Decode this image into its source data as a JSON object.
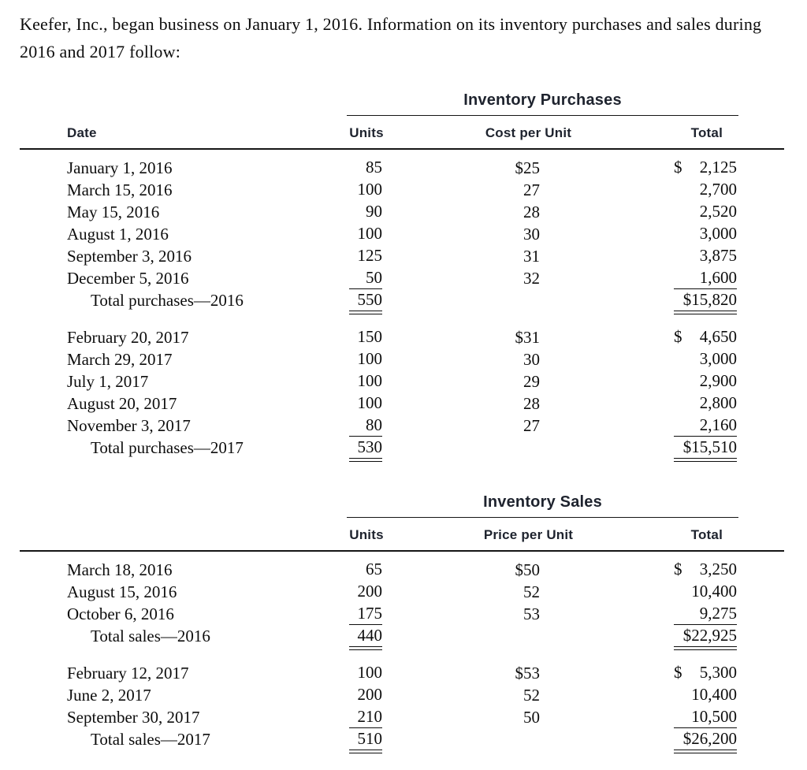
{
  "intro": "Keefer, Inc., began business on January 1, 2016. Information on its inventory purchases and sales during 2016 and 2017 follow:",
  "colors": {
    "header_text": "#1e232e",
    "body_text": "#0d0d0d",
    "rule": "#151515"
  },
  "purchases": {
    "title": "Inventory Purchases",
    "headers": {
      "date": "Date",
      "units": "Units",
      "price": "Cost per Unit",
      "total": "Total"
    },
    "groups": [
      {
        "rows": [
          {
            "date": "January 1, 2016",
            "units": "85",
            "price": "$25",
            "currency": "$",
            "amount": "2,125"
          },
          {
            "date": "March 15, 2016",
            "units": "100",
            "price": "27",
            "currency": "",
            "amount": "2,700"
          },
          {
            "date": "May 15, 2016",
            "units": "90",
            "price": "28",
            "currency": "",
            "amount": "2,520"
          },
          {
            "date": "August 1, 2016",
            "units": "100",
            "price": "30",
            "currency": "",
            "amount": "3,000"
          },
          {
            "date": "September 3, 2016",
            "units": "125",
            "price": "31",
            "currency": "",
            "amount": "3,875"
          },
          {
            "date": "December 5, 2016",
            "units": "50",
            "price": "32",
            "currency": "",
            "amount": "1,600"
          }
        ],
        "total": {
          "label": "Total purchases—2016",
          "units": "550",
          "amount": "$15,820"
        }
      },
      {
        "rows": [
          {
            "date": "February 20, 2017",
            "units": "150",
            "price": "$31",
            "currency": "$",
            "amount": "4,650"
          },
          {
            "date": "March 29, 2017",
            "units": "100",
            "price": "30",
            "currency": "",
            "amount": "3,000"
          },
          {
            "date": "July 1, 2017",
            "units": "100",
            "price": "29",
            "currency": "",
            "amount": "2,900"
          },
          {
            "date": "August 20, 2017",
            "units": "100",
            "price": "28",
            "currency": "",
            "amount": "2,800"
          },
          {
            "date": "November 3, 2017",
            "units": "80",
            "price": "27",
            "currency": "",
            "amount": "2,160"
          }
        ],
        "total": {
          "label": "Total purchases—2017",
          "units": "530",
          "amount": "$15,510"
        }
      }
    ]
  },
  "sales": {
    "title": "Inventory Sales",
    "headers": {
      "units": "Units",
      "price": "Price per Unit",
      "total": "Total"
    },
    "groups": [
      {
        "rows": [
          {
            "date": "March 18, 2016",
            "units": "65",
            "price": "$50",
            "currency": "$",
            "amount": "3,250"
          },
          {
            "date": "August 15, 2016",
            "units": "200",
            "price": "52",
            "currency": "",
            "amount": "10,400"
          },
          {
            "date": "October 6, 2016",
            "units": "175",
            "price": "53",
            "currency": "",
            "amount": "9,275"
          }
        ],
        "total": {
          "label": "Total sales—2016",
          "units": "440",
          "amount": "$22,925"
        }
      },
      {
        "rows": [
          {
            "date": "February 12, 2017",
            "units": "100",
            "price": "$53",
            "currency": "$",
            "amount": "5,300"
          },
          {
            "date": "June 2, 2017",
            "units": "200",
            "price": "52",
            "currency": "",
            "amount": "10,400"
          },
          {
            "date": "September 30, 2017",
            "units": "210",
            "price": "50",
            "currency": "",
            "amount": "10,500"
          }
        ],
        "total": {
          "label": "Total sales—2017",
          "units": "510",
          "amount": "$26,200"
        }
      }
    ]
  }
}
